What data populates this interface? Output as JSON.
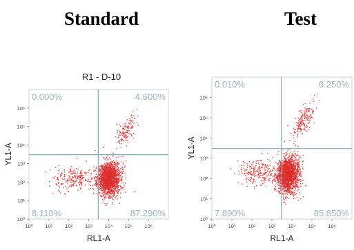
{
  "headers": {
    "standard": "Standard",
    "test": "Test"
  },
  "chart_data": [
    {
      "type": "scatter",
      "title": "R1 - D-10",
      "xlabel": "RL1-A",
      "ylabel": "YL1-A",
      "x_scale": "log",
      "y_scale": "log",
      "xlim": [
        1,
        10000000
      ],
      "ylim": [
        1,
        10000000
      ],
      "x_ticks": [
        "10⁰",
        "10¹",
        "10²",
        "10³",
        "10⁴",
        "10⁵",
        "10⁶"
      ],
      "y_ticks": [
        "10⁰",
        "10¹",
        "10²",
        "10³",
        "10⁴",
        "10⁵",
        "10⁶"
      ],
      "gate": {
        "x": 3000,
        "y": 3000
      },
      "quadrants": {
        "upper_left": "0.000%",
        "upper_right": "4.600%",
        "lower_left": "8.110%",
        "lower_right": "87.290%"
      },
      "populations": [
        {
          "name": "main",
          "x": 10000,
          "y": 150,
          "count": 1650
        },
        {
          "name": "double-positive",
          "x": 70000,
          "y": 50000,
          "count": 130
        },
        {
          "name": "low",
          "x": 200,
          "y": 150,
          "count": 230
        }
      ],
      "point_color": "#dd2b2b",
      "line_color": "#7fa8b5",
      "label_color": "#9ab6be"
    },
    {
      "type": "scatter",
      "title": "",
      "xlabel": "RL1-A",
      "ylabel": "YL1-A",
      "x_scale": "log",
      "y_scale": "log",
      "xlim": [
        1,
        10000000
      ],
      "ylim": [
        1,
        10000000
      ],
      "x_ticks": [
        "10⁰",
        "10¹",
        "10²",
        "10³",
        "10⁴",
        "10⁵",
        "10⁶"
      ],
      "y_ticks": [
        "10⁰",
        "10¹",
        "10²",
        "10³",
        "10⁴",
        "10⁵",
        "10⁶"
      ],
      "gate": {
        "x": 3000,
        "y": 3000
      },
      "quadrants": {
        "upper_left": "0.010%",
        "upper_right": "6.250%",
        "lower_left": "7.890%",
        "lower_right": "85.850%"
      },
      "populations": [
        {
          "name": "main",
          "x": 6000,
          "y": 150,
          "count": 1650
        },
        {
          "name": "double-positive",
          "x": 40000,
          "y": 80000,
          "count": 180
        },
        {
          "name": "low",
          "x": 200,
          "y": 200,
          "count": 230
        }
      ],
      "point_color": "#dd2b2b",
      "line_color": "#7fa8b5",
      "label_color": "#9ab6be"
    }
  ]
}
